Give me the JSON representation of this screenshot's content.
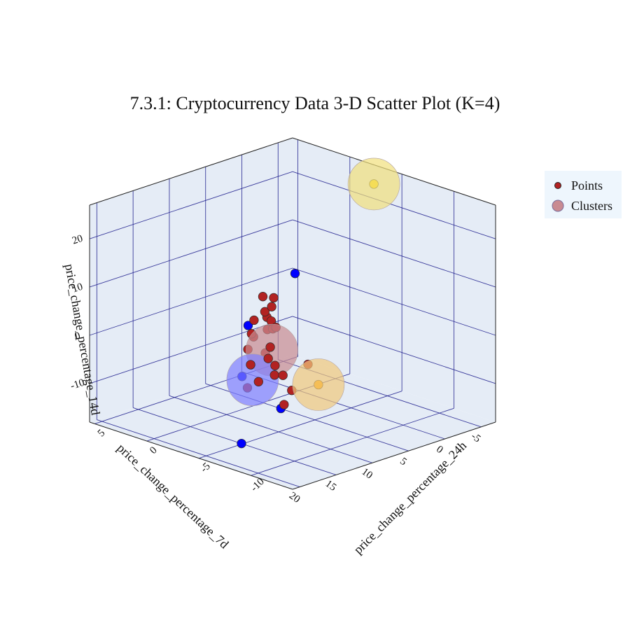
{
  "chart_data": {
    "type": "scatter3d",
    "title": "7.3.1: Cryptocurrency Data 3-D Scatter Plot (K=4)",
    "axes": {
      "x": {
        "label": "price_change_percentage_7d",
        "ticks": [
          -5,
          0,
          5,
          10,
          15,
          20
        ],
        "range": [
          -7,
          21
        ]
      },
      "y": {
        "label": "price_change_percentage_24h",
        "ticks": [
          -10,
          -5,
          0,
          5
        ],
        "range": [
          -14,
          5.5
        ]
      },
      "z": {
        "label": "price_change_percentage_14d",
        "ticks": [
          -10,
          0,
          10,
          20
        ],
        "range": [
          -18,
          27
        ]
      }
    },
    "legend": [
      {
        "label": "Points",
        "kind": "point",
        "color": "#b22222"
      },
      {
        "label": "Clusters",
        "kind": "cluster",
        "color": "#c98b92"
      }
    ],
    "colors": {
      "cluster0": "#b22222",
      "cluster1": "#0000ff",
      "cluster2": "#ffa500",
      "cluster3": "#ffd700",
      "pane": "#e5ecf6",
      "grid": "#1c1c8c"
    },
    "points": [
      {
        "x": 1.5,
        "y": 2.0,
        "z": -6.0,
        "cluster": 0
      },
      {
        "x": 2.5,
        "y": 1.5,
        "z": -10.0,
        "cluster": 0
      },
      {
        "x": 4.0,
        "y": 0.5,
        "z": 0.0,
        "cluster": 0
      },
      {
        "x": 3.5,
        "y": 0.0,
        "z": 3.0,
        "cluster": 0
      },
      {
        "x": 4.5,
        "y": -0.5,
        "z": 2.0,
        "cluster": 0
      },
      {
        "x": 3.0,
        "y": 1.0,
        "z": -2.0,
        "cluster": 0
      },
      {
        "x": 5.0,
        "y": 0.0,
        "z": 4.0,
        "cluster": 0
      },
      {
        "x": 6.0,
        "y": -1.5,
        "z": 0.5,
        "cluster": 0
      },
      {
        "x": 5.5,
        "y": 0.5,
        "z": -1.0,
        "cluster": 0
      },
      {
        "x": 7.0,
        "y": -0.5,
        "z": -3.0,
        "cluster": 0
      },
      {
        "x": 6.5,
        "y": -2.0,
        "z": -0.5,
        "cluster": 0
      },
      {
        "x": 8.0,
        "y": -1.0,
        "z": -1.5,
        "cluster": 0
      },
      {
        "x": 7.5,
        "y": -3.0,
        "z": 1.0,
        "cluster": 0
      },
      {
        "x": 9.0,
        "y": -3.5,
        "z": -2.0,
        "cluster": 0
      },
      {
        "x": 8.5,
        "y": -1.0,
        "z": -4.5,
        "cluster": 0
      },
      {
        "x": 9.5,
        "y": -2.0,
        "z": -6.5,
        "cluster": 0
      },
      {
        "x": 10.0,
        "y": -4.0,
        "z": -3.5,
        "cluster": 0
      },
      {
        "x": 11.0,
        "y": -3.0,
        "z": -5.0,
        "cluster": 0
      },
      {
        "x": 10.5,
        "y": -5.0,
        "z": -4.0,
        "cluster": 0
      },
      {
        "x": 12.0,
        "y": -6.0,
        "z": -4.5,
        "cluster": 0
      },
      {
        "x": 13.0,
        "y": -7.5,
        "z": -3.0,
        "cluster": 0
      },
      {
        "x": 13.5,
        "y": -5.5,
        "z": -5.5,
        "cluster": 0
      },
      {
        "x": 12.5,
        "y": -8.0,
        "z": -6.0,
        "cluster": 0
      },
      {
        "x": 15.0,
        "y": -9.0,
        "z": -7.0,
        "cluster": 0
      },
      {
        "x": 16.0,
        "y": -12.0,
        "z": 4.0,
        "cluster": 0
      },
      {
        "x": 10.0,
        "y": -2.0,
        "z": -11.0,
        "cluster": 0
      },
      {
        "x": 2.0,
        "y": -1.0,
        "z": 8.0,
        "cluster": 1
      },
      {
        "x": 2.0,
        "y": 3.5,
        "z": -6.0,
        "cluster": 1
      },
      {
        "x": 5.0,
        "y": 2.0,
        "z": -14.0,
        "cluster": 1
      },
      {
        "x": 14.0,
        "y": -8.0,
        "z": -9.0,
        "cluster": 1
      },
      {
        "x": 18.0,
        "y": -7.0,
        "z": -15.0,
        "cluster": 1
      },
      {
        "x": 16.0,
        "y": -13.0,
        "z": 0.5,
        "cluster": 2
      },
      {
        "x": -6.0,
        "y": -3.0,
        "z": 24.0,
        "cluster": 3
      }
    ],
    "centroids": [
      {
        "x": 8.2,
        "y": -3.1,
        "z": -3.3,
        "cluster": 0,
        "color": "#c98b92"
      },
      {
        "x": 10.0,
        "y": -2.5,
        "z": -9.0,
        "cluster": 1,
        "color": "#7f7fff"
      },
      {
        "x": 16.0,
        "y": -13.0,
        "z": 0.5,
        "cluster": 2,
        "color": "#f1c97c"
      },
      {
        "x": -6.0,
        "y": -3.0,
        "z": 24.0,
        "cluster": 3,
        "color": "#f1e07c"
      }
    ]
  }
}
